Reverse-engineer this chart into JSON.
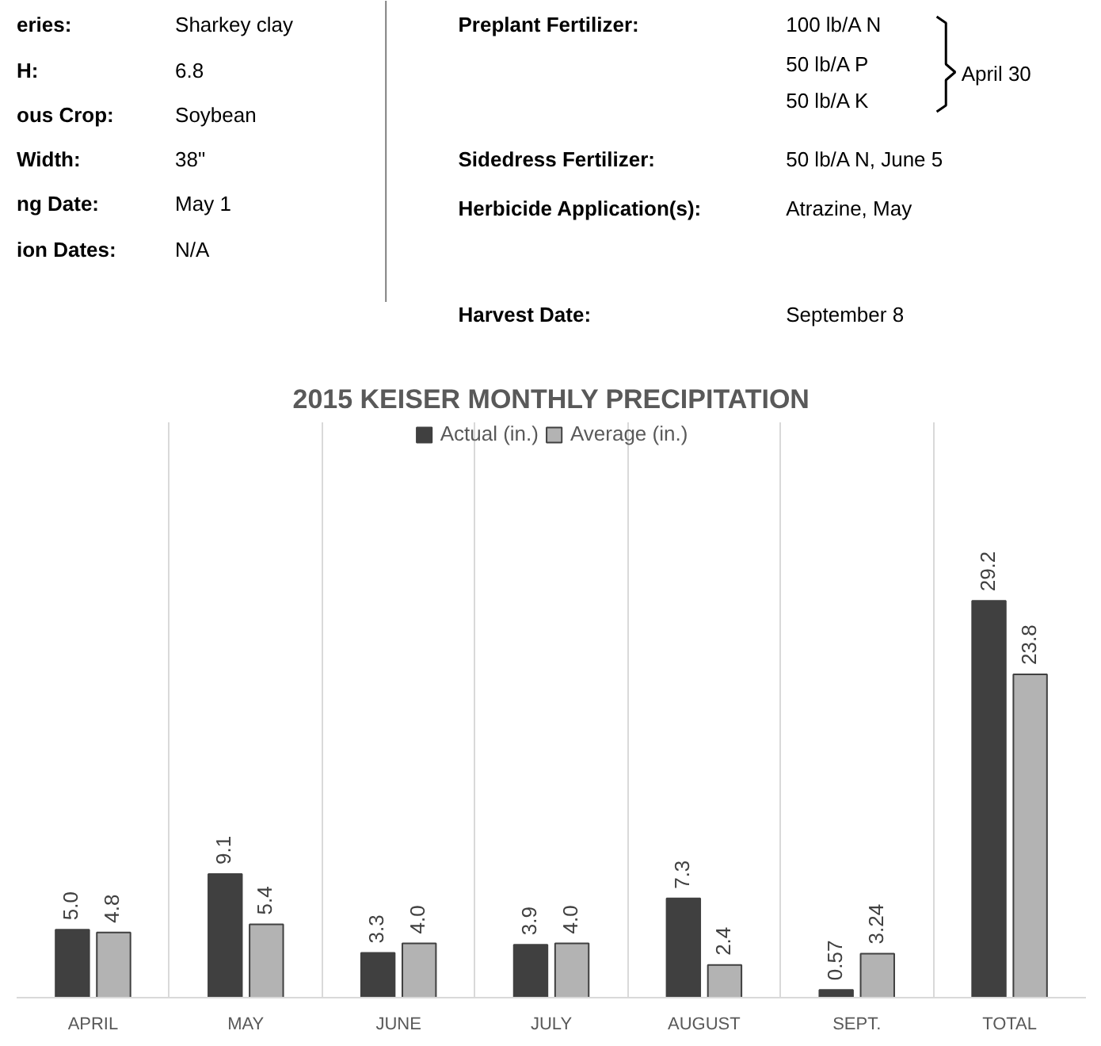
{
  "chart_data": {
    "type": "bar",
    "title": "2015 KEISER MONTHLY PRECIPITATION",
    "categories": [
      "APRIL",
      "MAY",
      "JUNE",
      "JULY",
      "AUGUST",
      "SEPT.",
      "TOTAL"
    ],
    "series": [
      {
        "name": "Actual (in.)",
        "color": "#404040",
        "values": [
          5.0,
          9.1,
          3.3,
          3.9,
          7.3,
          0.57,
          29.2
        ],
        "value_labels": [
          "5.0",
          "9.1",
          "3.3",
          "3.9",
          "7.3",
          "0.57",
          "29.2"
        ]
      },
      {
        "name": "Average (in.)",
        "color": "#b3b3b3",
        "values": [
          4.8,
          5.4,
          4.0,
          4.0,
          2.4,
          3.24,
          23.8
        ],
        "value_labels": [
          "4.8",
          "5.4",
          "4.0",
          "4.0",
          "2.4",
          "3.24",
          "23.8"
        ]
      }
    ],
    "grid": "x",
    "legend": "top",
    "annotations": [
      "eries:",
      "Sharkey clay",
      "H:",
      "6.8",
      "ous Crop:",
      "Soybean",
      "Width:",
      "38\"",
      "ng Date:",
      "May 1",
      "ion Dates:",
      "N/A",
      "Preplant Fertilizer:",
      "100 lb/A N",
      "50 lb/A P",
      "50 lb/A K",
      "April 30",
      "Sidedress Fertilizer:",
      "50 lb/A N, June 5",
      "Herbicide Application(s):",
      "Atrazine, May",
      "Harvest Date:",
      "September 8"
    ]
  }
}
